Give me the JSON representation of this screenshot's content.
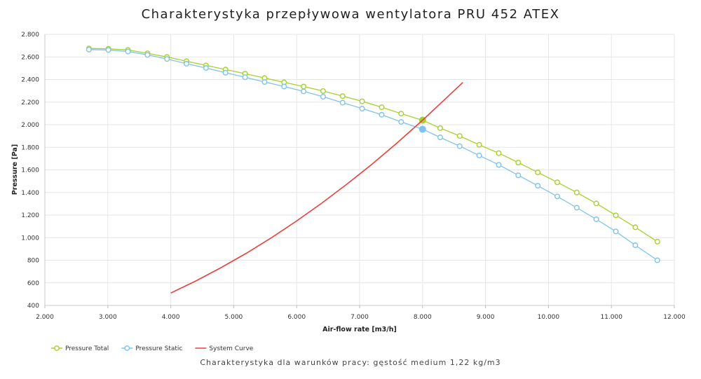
{
  "chart_data": {
    "type": "line",
    "title": "Charakterystyka przepływowa wentylatora PRU 452 ATEX",
    "caption": "Charakterystyka dla warunków pracy: gęstość medium 1,22 kg/m3",
    "xlabel": "Air-flow rate [m3/h]",
    "ylabel": "Pressure [Pa]",
    "xlim": [
      2000,
      12000
    ],
    "ylim": [
      400,
      2800
    ],
    "x_ticks": [
      2000,
      3000,
      4000,
      5000,
      6000,
      7000,
      8000,
      9000,
      10000,
      11000,
      12000
    ],
    "y_ticks": [
      400,
      600,
      800,
      1000,
      1200,
      1400,
      1600,
      1800,
      2000,
      2200,
      2400,
      2600,
      2800
    ],
    "x_tick_labels": [
      "2.000",
      "3.000",
      "4.000",
      "5.000",
      "6.000",
      "7.000",
      "8.000",
      "9.000",
      "10.000",
      "11.000",
      "12.000"
    ],
    "y_tick_labels": [
      "400",
      "600",
      "800",
      "1.000",
      "1.200",
      "1.400",
      "1.600",
      "1.800",
      "2.000",
      "2.200",
      "2.400",
      "2.600",
      "2.800"
    ],
    "grid": true,
    "legend_position": "bottom-left",
    "series": [
      {
        "name": "Pressure Total",
        "color": "#a6d12b",
        "marker": "hollow-circle",
        "x": [
          2700,
          3010,
          3320,
          3630,
          3940,
          4250,
          4560,
          4870,
          5180,
          5490,
          5800,
          6110,
          6420,
          6730,
          7040,
          7350,
          7660,
          8000,
          8280,
          8590,
          8900,
          9210,
          9520,
          9830,
          10140,
          10450,
          10760,
          11070,
          11380,
          11730
        ],
        "y": [
          2675,
          2672,
          2662,
          2632,
          2600,
          2562,
          2525,
          2488,
          2452,
          2413,
          2375,
          2338,
          2298,
          2253,
          2207,
          2155,
          2098,
          2040,
          1970,
          1900,
          1822,
          1748,
          1665,
          1578,
          1490,
          1400,
          1303,
          1198,
          1092,
          965
        ],
        "highlight": {
          "x": 8000,
          "y": 2040
        }
      },
      {
        "name": "Pressure Static",
        "color": "#7fc3ec",
        "marker": "hollow-circle",
        "x": [
          2700,
          3010,
          3320,
          3630,
          3940,
          4250,
          4560,
          4870,
          5180,
          5490,
          5800,
          6110,
          6420,
          6730,
          7040,
          7350,
          7660,
          8000,
          8280,
          8590,
          8900,
          9210,
          9520,
          9830,
          10140,
          10450,
          10760,
          11070,
          11380,
          11730
        ],
        "y": [
          2665,
          2662,
          2648,
          2618,
          2582,
          2540,
          2502,
          2460,
          2420,
          2378,
          2338,
          2295,
          2248,
          2195,
          2143,
          2088,
          2025,
          1960,
          1888,
          1810,
          1728,
          1645,
          1552,
          1460,
          1365,
          1265,
          1163,
          1055,
          933,
          800
        ]
      },
      {
        "name": "System Curve",
        "color": "#e8403a",
        "marker": "none",
        "x": [
          4000,
          4400,
          4800,
          5200,
          5600,
          6000,
          6400,
          6800,
          7200,
          7600,
          8000,
          8300,
          8640
        ],
        "y": [
          510,
          617,
          735,
          862,
          1000,
          1148,
          1306,
          1474,
          1652,
          1841,
          2040,
          2196,
          2374
        ]
      }
    ]
  }
}
